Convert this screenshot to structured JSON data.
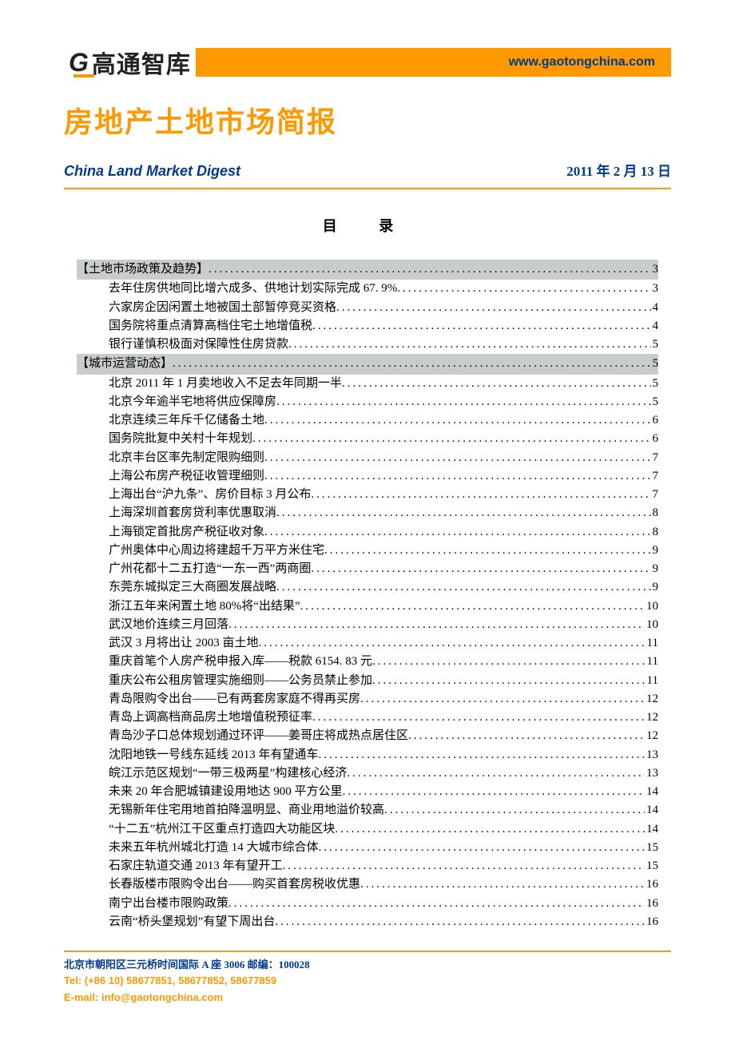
{
  "colors": {
    "accent_orange": "#ff9900",
    "brand_blue": "#003b8e",
    "section_bg": "#c8cccc",
    "text": "#000000",
    "page_bg": "#ffffff"
  },
  "typography": {
    "body_font": "SimSun",
    "heading_font": "SimHei",
    "latin_font": "Arial",
    "title_size_pt": 36,
    "subtitle_size_pt": 18,
    "toc_size_pt": 15,
    "footer_size_pt": 13
  },
  "header": {
    "logo_mark": "G",
    "logo_text": "高通智库",
    "site_url": "www.gaotongchina.com"
  },
  "report": {
    "title": "房地产土地市场简报",
    "subtitle": "China Land Market Digest",
    "date": "2011 年 2 月 13 日"
  },
  "toc_title": "目  录",
  "toc": [
    {
      "type": "section",
      "label": "【土地市场政策及趋势】",
      "page": "3"
    },
    {
      "type": "item",
      "label": "去年住房供地同比增六成多、供地计划实际完成 67. 9%",
      "page": "3"
    },
    {
      "type": "item",
      "label": "六家房企因闲置土地被国土部暂停竞买资格",
      "page": "4"
    },
    {
      "type": "item",
      "label": "国务院将重点清算高档住宅土地增值税",
      "page": "4"
    },
    {
      "type": "item",
      "label": "银行谨慎积极面对保障性住房贷款",
      "page": "5"
    },
    {
      "type": "section",
      "label": "【城市运营动态】",
      "page": "5"
    },
    {
      "type": "item",
      "label": "北京 2011 年 1 月卖地收入不足去年同期一半",
      "page": "5"
    },
    {
      "type": "item",
      "label": "北京今年逾半宅地将供应保障房",
      "page": "5"
    },
    {
      "type": "item",
      "label": "北京连续三年斥千亿储备土地",
      "page": "6"
    },
    {
      "type": "item",
      "label": "国务院批复中关村十年规划",
      "page": "6"
    },
    {
      "type": "item",
      "label": "北京丰台区率先制定限购细则",
      "page": "7"
    },
    {
      "type": "item",
      "label": "上海公布房产税征收管理细则",
      "page": "7"
    },
    {
      "type": "item",
      "label": "上海出台“沪九条”、房价目标 3 月公布",
      "page": "7"
    },
    {
      "type": "item",
      "label": "上海深圳首套房贷利率优惠取消",
      "page": "8"
    },
    {
      "type": "item",
      "label": "上海锁定首批房产税征收对象",
      "page": "8"
    },
    {
      "type": "item",
      "label": "广州奥体中心周边将建超千万平方米住宅",
      "page": "9"
    },
    {
      "type": "item",
      "label": "广州花都十二五打造“一东一西”两商圈",
      "page": "9"
    },
    {
      "type": "item",
      "label": "东莞东城拟定三大商圈发展战略",
      "page": "9"
    },
    {
      "type": "item",
      "label": "浙江五年来闲置土地 80%将“出结果”",
      "page": "10"
    },
    {
      "type": "item",
      "label": "武汉地价连续三月回落",
      "page": "10"
    },
    {
      "type": "item",
      "label": "武汉 3 月将出让 2003 亩土地",
      "page": "11"
    },
    {
      "type": "item",
      "label": "重庆首笔个人房产税申报入库——税款 6154. 83 元",
      "page": "11"
    },
    {
      "type": "item",
      "label": "重庆公布公租房管理实施细则——公务员禁止参加",
      "page": "11"
    },
    {
      "type": "item",
      "label": "青岛限购令出台——已有两套房家庭不得再买房",
      "page": "12"
    },
    {
      "type": "item",
      "label": "青岛上调高档商品房土地增值税预征率",
      "page": "12"
    },
    {
      "type": "item",
      "label": "青岛沙子口总体规划通过环评——姜哥庄将成热点居住区",
      "page": "12"
    },
    {
      "type": "item",
      "label": "沈阳地铁一号线东延线 2013 年有望通车",
      "page": "13"
    },
    {
      "type": "item",
      "label": "皖江示范区规划“一带三极两星”构建核心经济",
      "page": "13"
    },
    {
      "type": "item",
      "label": "未来 20 年合肥城镇建设用地达 900 平方公里",
      "page": "14"
    },
    {
      "type": "item",
      "label": "无锡新年住宅用地首拍降温明显、商业用地溢价较高",
      "page": "14"
    },
    {
      "type": "item",
      "label": "“十二五”杭州江干区重点打造四大功能区块",
      "page": "14"
    },
    {
      "type": "item",
      "label": "未来五年杭州城北打造 14 大城市综合体",
      "page": "15"
    },
    {
      "type": "item",
      "label": "石家庄轨道交通 2013 年有望开工",
      "page": "15"
    },
    {
      "type": "item",
      "label": "长春版楼市限购令出台——购买首套房税收优惠",
      "page": "16"
    },
    {
      "type": "item",
      "label": "南宁出台楼市限购政策",
      "page": "16"
    },
    {
      "type": "item",
      "label": "云南“桥头堡规划”有望下周出台",
      "page": "16"
    }
  ],
  "footer": {
    "address": "北京市朝阳区三元桥时间国际 A 座 3006    邮编：100028",
    "tel": "Tel: (+86 10) 58677851, 58677852, 58677859",
    "email": "E-mail: info@gaotongchina.com"
  }
}
